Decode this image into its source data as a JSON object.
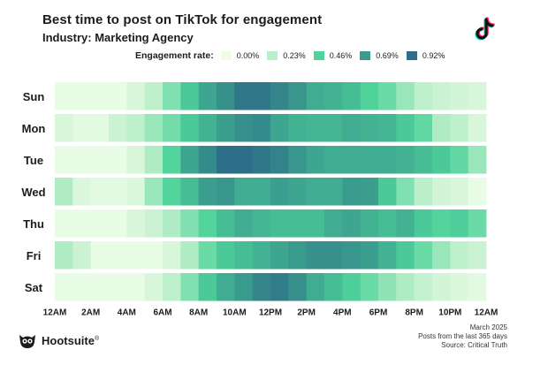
{
  "title": "Best time to post on TikTok for engagement",
  "subtitle": "Industry: Marketing Agency",
  "legend": {
    "title": "Engagement rate:",
    "items": [
      {
        "label": "0.00%",
        "color": "#eefde8"
      },
      {
        "label": "0.23%",
        "color": "#b8eec8"
      },
      {
        "label": "0.46%",
        "color": "#4fd39b"
      },
      {
        "label": "0.69%",
        "color": "#3a9c8e"
      },
      {
        "label": "0.92%",
        "color": "#2d6f88"
      }
    ]
  },
  "chart_data": {
    "type": "heatmap",
    "title": "Best time to post on TikTok for engagement",
    "subtitle": "Industry: Marketing Agency",
    "rows": [
      "Sun",
      "Mon",
      "Tue",
      "Wed",
      "Thu",
      "Fri",
      "Sat"
    ],
    "x_tick_labels": [
      "12AM",
      "2AM",
      "4AM",
      "6AM",
      "8AM",
      "10AM",
      "12PM",
      "2PM",
      "4PM",
      "6PM",
      "8PM",
      "10PM",
      "12AM"
    ],
    "columns": 24,
    "unit": "engagement rate (%)",
    "value_range": [
      0.0,
      0.92
    ],
    "values": [
      [
        0.02,
        0.02,
        0.02,
        0.02,
        0.1,
        0.2,
        0.35,
        0.5,
        0.65,
        0.75,
        0.88,
        0.88,
        0.8,
        0.72,
        0.62,
        0.6,
        0.55,
        0.46,
        0.4,
        0.3,
        0.2,
        0.15,
        0.12,
        0.1
      ],
      [
        0.1,
        0.05,
        0.05,
        0.15,
        0.2,
        0.3,
        0.38,
        0.5,
        0.6,
        0.68,
        0.75,
        0.78,
        0.65,
        0.6,
        0.58,
        0.58,
        0.62,
        0.6,
        0.58,
        0.5,
        0.42,
        0.25,
        0.2,
        0.1
      ],
      [
        0.02,
        0.02,
        0.02,
        0.02,
        0.1,
        0.25,
        0.45,
        0.65,
        0.78,
        0.92,
        0.92,
        0.88,
        0.82,
        0.72,
        0.65,
        0.62,
        0.62,
        0.62,
        0.62,
        0.6,
        0.55,
        0.5,
        0.42,
        0.3
      ],
      [
        0.25,
        0.08,
        0.05,
        0.05,
        0.08,
        0.3,
        0.45,
        0.55,
        0.68,
        0.72,
        0.62,
        0.62,
        0.68,
        0.65,
        0.62,
        0.62,
        0.7,
        0.68,
        0.5,
        0.35,
        0.22,
        0.12,
        0.1,
        0.02
      ],
      [
        0.02,
        0.02,
        0.02,
        0.02,
        0.1,
        0.15,
        0.25,
        0.35,
        0.45,
        0.55,
        0.62,
        0.58,
        0.55,
        0.55,
        0.55,
        0.62,
        0.65,
        0.6,
        0.55,
        0.6,
        0.5,
        0.45,
        0.48,
        0.4
      ],
      [
        0.25,
        0.15,
        0.02,
        0.02,
        0.02,
        0.02,
        0.1,
        0.25,
        0.4,
        0.5,
        0.55,
        0.6,
        0.65,
        0.7,
        0.75,
        0.75,
        0.72,
        0.68,
        0.6,
        0.5,
        0.4,
        0.3,
        0.2,
        0.15
      ],
      [
        0.02,
        0.02,
        0.02,
        0.02,
        0.02,
        0.1,
        0.2,
        0.35,
        0.5,
        0.62,
        0.7,
        0.8,
        0.85,
        0.75,
        0.62,
        0.55,
        0.48,
        0.4,
        0.32,
        0.25,
        0.18,
        0.12,
        0.08,
        0.05
      ]
    ],
    "grid": false,
    "legend_placement": "top"
  },
  "footer": {
    "brand": "Hootsuite",
    "trademark": "®",
    "date": "March 2025",
    "period": "Posts from the last 365 days",
    "source": "Source: Critical Truth"
  },
  "icons": {
    "logo": "tiktok-logo-icon",
    "brand": "hootsuite-owl-icon"
  }
}
